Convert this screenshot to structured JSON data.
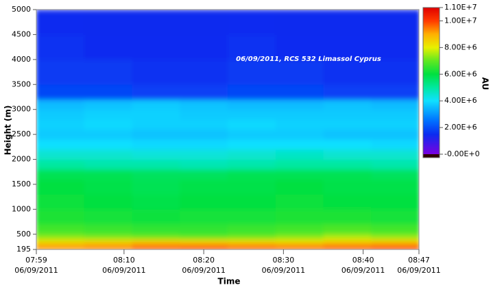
{
  "chart_data": {
    "type": "heatmap",
    "annotation": "06/09/2011, RCS 532 Limassol Cyprus",
    "x_label": "Time",
    "y_label": "Height (m)",
    "colorbar_label": "AU",
    "x_edges": [
      "2011-06-09T07:59",
      "2011-06-09T08:05",
      "2011-06-09T08:11",
      "2011-06-09T08:17",
      "2011-06-09T08:23",
      "2011-06-09T08:29",
      "2011-06-09T08:35",
      "2011-06-09T08:41",
      "2011-06-09T08:47"
    ],
    "y_edges": [
      195,
      300,
      400,
      500,
      700,
      1000,
      1300,
      1600,
      1800,
      2000,
      2200,
      2400,
      2600,
      2800,
      3000,
      3200,
      3500,
      4000,
      4500,
      5000
    ],
    "z": [
      [
        9300000,
        9400000,
        9800000,
        9900000,
        9700000,
        9600000,
        9800000,
        10000000
      ],
      [
        8300000,
        8400000,
        8600000,
        8500000,
        8400000,
        8300000,
        8500000,
        8600000
      ],
      [
        7300000,
        7200000,
        7100000,
        7000000,
        7100000,
        7300000,
        7600000,
        7400000
      ],
      [
        6700000,
        6600000,
        6500000,
        6500000,
        6600000,
        6700000,
        6800000,
        6700000
      ],
      [
        6300000,
        6200000,
        6100000,
        6200000,
        6200000,
        6300000,
        6300000,
        6200000
      ],
      [
        6100000,
        6000000,
        5900000,
        6000000,
        6000000,
        6100000,
        6000000,
        6000000
      ],
      [
        6000000,
        5900000,
        5800000,
        5900000,
        5900000,
        6000000,
        5900000,
        5900000
      ],
      [
        5800000,
        5800000,
        5700000,
        5700000,
        5800000,
        5800000,
        5800000,
        5700000
      ],
      [
        5000000,
        4900000,
        4900000,
        4800000,
        4900000,
        5000000,
        5000000,
        4900000
      ],
      [
        4500000,
        4500000,
        4400000,
        4400000,
        4500000,
        4600000,
        4500000,
        4500000
      ],
      [
        4000000,
        4000000,
        3900000,
        3900000,
        4000000,
        4000000,
        4000000,
        3900000
      ],
      [
        3700000,
        3700000,
        3600000,
        3600000,
        3700000,
        3700000,
        3600000,
        3600000
      ],
      [
        3800000,
        3900000,
        3800000,
        3800000,
        3900000,
        3800000,
        3800000,
        3800000
      ],
      [
        3700000,
        3800000,
        3800000,
        3700000,
        3700000,
        3700000,
        3700000,
        3700000
      ],
      [
        3500000,
        3600000,
        3700000,
        3600000,
        3500000,
        3500000,
        3600000,
        3500000
      ],
      [
        1900000,
        1900000,
        1800000,
        1800000,
        1900000,
        1900000,
        1800000,
        1800000
      ],
      [
        1700000,
        1700000,
        1600000,
        1600000,
        1700000,
        1700000,
        1600000,
        1600000
      ],
      [
        1600000,
        1500000,
        1500000,
        1500000,
        1600000,
        1500000,
        1500000,
        1500000
      ],
      [
        1500000,
        1400000,
        1400000,
        1400000,
        1500000,
        1400000,
        1400000,
        1400000
      ]
    ],
    "xlim": [
      "2011-06-09T07:59",
      "2011-06-09T08:47"
    ],
    "xticks": [
      {
        "value": "2011-06-09T07:59",
        "label": [
          "07:59",
          "06/09/2011"
        ]
      },
      {
        "value": "2011-06-09T08:10",
        "label": [
          "08:10",
          "06/09/2011"
        ]
      },
      {
        "value": "2011-06-09T08:20",
        "label": [
          "08:20",
          "06/09/2011"
        ]
      },
      {
        "value": "2011-06-09T08:30",
        "label": [
          "08:30",
          "06/09/2011"
        ]
      },
      {
        "value": "2011-06-09T08:40",
        "label": [
          "08:40",
          "06/09/2011"
        ]
      },
      {
        "value": "2011-06-09T08:47",
        "label": [
          "08:47",
          "06/09/2011"
        ]
      }
    ],
    "ylim": [
      195,
      5000
    ],
    "yticks": [
      195,
      500,
      1000,
      1500,
      2000,
      2500,
      3000,
      3500,
      4000,
      4500,
      5000
    ],
    "clim": [
      0,
      11000000
    ],
    "cticks": [
      {
        "value": 0,
        "label": "-0.00E+0"
      },
      {
        "value": 2000000,
        "label": "2.00E+6"
      },
      {
        "value": 4000000,
        "label": "4.00E+6"
      },
      {
        "value": 6000000,
        "label": "6.00E+6"
      },
      {
        "value": 8000000,
        "label": "8.00E+6"
      },
      {
        "value": 10000000,
        "label": "1.00E+7"
      },
      {
        "value": 11000000,
        "label": "1.10E+7"
      }
    ],
    "colorscale": [
      [
        0,
        "#7a00e0"
      ],
      [
        1500000,
        "#0a2cf0"
      ],
      [
        2500000,
        "#0070ff"
      ],
      [
        4000000,
        "#10e0ff"
      ],
      [
        5000000,
        "#00e8a0"
      ],
      [
        6000000,
        "#00e040"
      ],
      [
        7000000,
        "#60e820"
      ],
      [
        8000000,
        "#e8f000"
      ],
      [
        9000000,
        "#ffb000"
      ],
      [
        10000000,
        "#ff3a00"
      ],
      [
        11000000,
        "#e00000"
      ]
    ]
  }
}
